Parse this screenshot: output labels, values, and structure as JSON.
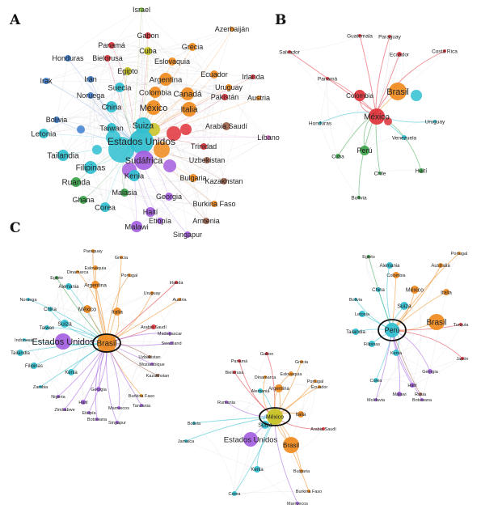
{
  "panels": {
    "A": {
      "label": "A",
      "countries": [
        "Israel",
        "Gabon",
        "Azerbaiján",
        "Panamá",
        "Grecia",
        "Honduras",
        "Bielorusa",
        "Cuba",
        "Eslovaquia",
        "Irak",
        "Irán",
        "Egipto",
        "Argentina",
        "Ecuador",
        "Irlanda",
        "Noruega",
        "Suecia",
        "Colombia",
        "Canadá",
        "Uruguay",
        "Pakistán",
        "Austria",
        "China",
        "México",
        "Italia",
        "Bolivia",
        "Arabia Saudí",
        "Letonia",
        "Taiwan",
        "Suiza",
        "Líbano",
        "Estados Unidos",
        "Trinidad",
        "Tailandia",
        "Sudáfrica",
        "Uzbekistan",
        "Filipinas",
        "Kenia",
        "Ruanda",
        "Bulgaria",
        "Kazakhstan",
        "Ghana",
        "Malasia",
        "Corea",
        "Georgia",
        "Haití",
        "Burkina Faso",
        "Etiopía",
        "Armenia",
        "Malawi",
        "Singapur"
      ]
    },
    "B": {
      "label": "B",
      "countries": [
        "Guatemala",
        "Paraguay",
        "Salvador",
        "Ecuador",
        "Costa Rica",
        "Panamá",
        "Brasil",
        "Colombia",
        "México",
        "Uruguay",
        "Honduras",
        "Venezuela",
        "Perú",
        "Cuba",
        "Chile",
        "Haití",
        "Bolivia"
      ]
    },
    "C": {
      "label": "C",
      "ego_brasil": [
        "Paraguay",
        "Grecia",
        "Eslovaquia",
        "Dinamarca",
        "Argentina",
        "Portugal",
        "Alemania",
        "Egipto",
        "Irlanda",
        "Uruguay",
        "Noruega",
        "México",
        "Austria",
        "China",
        "Italia",
        "Arabia Saudí",
        "Suiza",
        "Madagascar",
        "Taiwan",
        "Estados Unidos",
        "Brasil",
        "Swaziland",
        "Indonesia",
        "Uzbekistan",
        "Mozambique",
        "Tailandia",
        "Kazakhstan",
        "Filipinas",
        "Kenia",
        "Zambia",
        "Georgia",
        "Nigeria",
        "Burkina Faso",
        "Haití",
        "Zimbabwe",
        "Marruecos",
        "Etiopía",
        "Botswana",
        "Singapur",
        "Tanzania"
      ],
      "ego_mexico": [
        "Gabon",
        "Panamá",
        "Bielorusa",
        "Grecia",
        "Dinamarca",
        "Eslovaquia",
        "Portugal",
        "Argentina",
        "Ecuador",
        "Rumania",
        "Alemania",
        "México",
        "Suiza",
        "Italia",
        "Arabia Saudí",
        "Bolivia",
        "Estados Unidos",
        "Brasil",
        "Jamaica",
        "Kenia",
        "Bulgaria",
        "Corea",
        "Burkina Faso",
        "Marruecos"
      ],
      "ego_peru": [
        "Portugal",
        "Egipto",
        "Australia",
        "Alemania",
        "Colombia",
        "México",
        "Italia",
        "Bolivia",
        "China",
        "Suiza",
        "Letonia",
        "Brasil",
        "Tailandia",
        "Perú",
        "Turquía",
        "Filipinas",
        "Kenia",
        "Japón",
        "Corea",
        "Georgia",
        "Haití",
        "Malawi",
        "Rusia",
        "Moldavia",
        "Botswana"
      ]
    }
  },
  "colors": {
    "purple": "#a45ee0",
    "teal": "#2fbfd0",
    "orange": "#f08a1c",
    "red": "#e0323a",
    "green": "#3aa44a",
    "yellow": "#c7c222",
    "blue": "#3f7fd0",
    "brown": "#a0644a",
    "pink": "#e07ad0",
    "lightgreen": "#8fcf4a",
    "ring": "#111111"
  }
}
